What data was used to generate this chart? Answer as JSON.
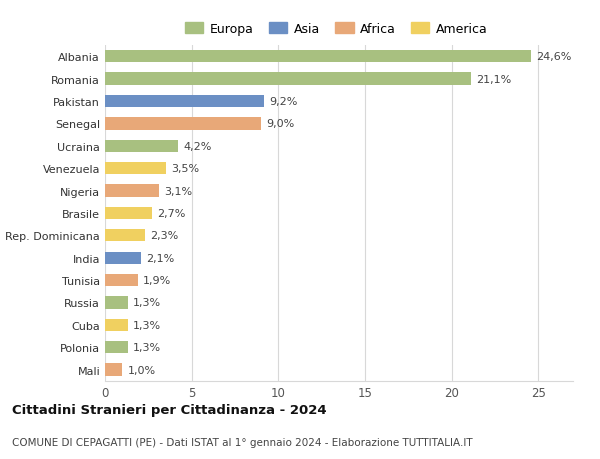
{
  "countries": [
    "Albania",
    "Romania",
    "Pakistan",
    "Senegal",
    "Ucraina",
    "Venezuela",
    "Nigeria",
    "Brasile",
    "Rep. Dominicana",
    "India",
    "Tunisia",
    "Russia",
    "Cuba",
    "Polonia",
    "Mali"
  ],
  "values": [
    24.6,
    21.1,
    9.2,
    9.0,
    4.2,
    3.5,
    3.1,
    2.7,
    2.3,
    2.1,
    1.9,
    1.3,
    1.3,
    1.3,
    1.0
  ],
  "labels": [
    "24,6%",
    "21,1%",
    "9,2%",
    "9,0%",
    "4,2%",
    "3,5%",
    "3,1%",
    "2,7%",
    "2,3%",
    "2,1%",
    "1,9%",
    "1,3%",
    "1,3%",
    "1,3%",
    "1,0%"
  ],
  "colors": [
    "#a8c080",
    "#a8c080",
    "#6b8fc4",
    "#e8a878",
    "#a8c080",
    "#f0d060",
    "#e8a878",
    "#f0d060",
    "#f0d060",
    "#6b8fc4",
    "#e8a878",
    "#a8c080",
    "#f0d060",
    "#a8c080",
    "#e8a878"
  ],
  "legend_labels": [
    "Europa",
    "Asia",
    "Africa",
    "America"
  ],
  "legend_colors": [
    "#a8c080",
    "#6b8fc4",
    "#e8a878",
    "#f0d060"
  ],
  "xlim": [
    0,
    27
  ],
  "xticks": [
    0,
    5,
    10,
    15,
    20,
    25
  ],
  "title": "Cittadini Stranieri per Cittadinanza - 2024",
  "subtitle": "COMUNE DI CEPAGATTI (PE) - Dati ISTAT al 1° gennaio 2024 - Elaborazione TUTTITALIA.IT",
  "background_color": "#ffffff",
  "grid_color": "#d8d8d8",
  "bar_height": 0.55,
  "title_fontsize": 9.5,
  "subtitle_fontsize": 7.5,
  "label_fontsize": 8.0,
  "ytick_fontsize": 8.0,
  "xtick_fontsize": 8.5,
  "legend_fontsize": 9.0
}
